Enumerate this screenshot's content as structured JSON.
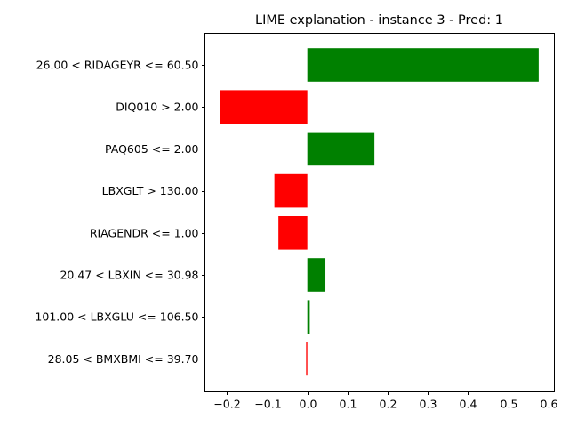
{
  "chart_data": {
    "type": "bar",
    "orientation": "horizontal",
    "title": "LIME explanation - instance 3 - Pred: 1",
    "xlabel": "",
    "ylabel": "",
    "categories": [
      "26.00 < RIDAGEYR <= 60.50",
      "DIQ010 > 2.00",
      "PAQ605 <= 2.00",
      "LBXGLT > 130.00",
      "RIAGENDR <= 1.00",
      "20.47 < LBXIN <= 30.98",
      "101.00 < LBXGLU <= 106.50",
      "28.05 < BMXBMI <= 39.70"
    ],
    "values": [
      0.576,
      -0.217,
      0.167,
      -0.082,
      -0.072,
      0.045,
      0.006,
      -0.003
    ],
    "xlim": [
      -0.255,
      0.615
    ],
    "xticks": [
      -0.2,
      -0.1,
      0.0,
      0.1,
      0.2,
      0.3,
      0.4,
      0.5,
      0.6
    ],
    "xtick_labels": [
      "−0.2",
      "−0.1",
      "0.0",
      "0.1",
      "0.2",
      "0.3",
      "0.4",
      "0.5",
      "0.6"
    ],
    "positive_color": "#008000",
    "negative_color": "#ff0000",
    "grid": false,
    "legend": "none"
  }
}
